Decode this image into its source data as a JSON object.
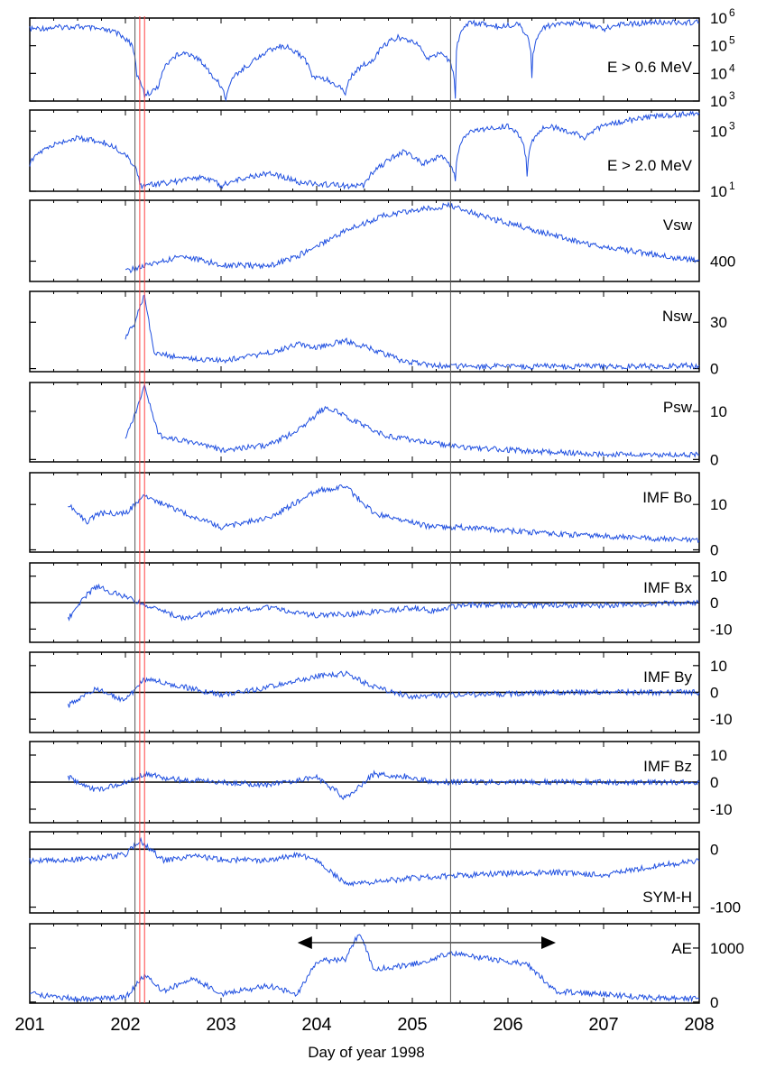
{
  "figure": {
    "xlabel": "Day of year 1998",
    "x_ticks": [
      "201",
      "202",
      "203",
      "204",
      "205",
      "206",
      "207",
      "208"
    ],
    "trace_color": "#1f4fe0",
    "marker_color": "#ff4040",
    "event_line_color": "#555555"
  },
  "chart_data": [
    {
      "type": "line",
      "series": [
        {
          "name": "E > 0.6 MeV",
          "values": [
            [
              201.0,
              400000
            ],
            [
              201.5,
              500000
            ],
            [
              201.9,
              300000
            ],
            [
              202.05,
              120000
            ],
            [
              202.12,
              8000
            ],
            [
              202.2,
              1500
            ],
            [
              202.35,
              3000
            ],
            [
              202.6,
              60000
            ],
            [
              202.9,
              8000
            ],
            [
              203.05,
              1000
            ],
            [
              203.3,
              20000
            ],
            [
              203.65,
              100000
            ],
            [
              203.95,
              8000
            ],
            [
              204.1,
              6000
            ],
            [
              204.3,
              2000
            ],
            [
              204.6,
              30000
            ],
            [
              204.85,
              200000
            ],
            [
              205.0,
              150000
            ],
            [
              205.15,
              30000
            ],
            [
              205.3,
              60000
            ],
            [
              205.45,
              1500
            ],
            [
              205.6,
              700000
            ],
            [
              205.9,
              500000
            ],
            [
              206.1,
              600000
            ],
            [
              206.25,
              6000
            ],
            [
              206.4,
              500000
            ],
            [
              206.7,
              700000
            ],
            [
              207.0,
              400000
            ],
            [
              207.2,
              600000
            ],
            [
              207.6,
              700000
            ],
            [
              208.0,
              700000
            ]
          ]
        }
      ],
      "yticks": [
        "10",
        "10",
        "10",
        "10"
      ],
      "ytick_powers": [
        "6",
        "5",
        "4",
        "3"
      ],
      "yscale": "log",
      "ylim": [
        1000,
        1000000
      ],
      "xlim": [
        201,
        208
      ]
    },
    {
      "type": "line",
      "series": [
        {
          "name": "E > 2.0 MeV",
          "values": [
            [
              201.0,
              80
            ],
            [
              201.5,
              600
            ],
            [
              201.8,
              400
            ],
            [
              202.0,
              150
            ],
            [
              202.15,
              15
            ],
            [
              202.5,
              20
            ],
            [
              202.8,
              30
            ],
            [
              203.0,
              15
            ],
            [
              203.5,
              40
            ],
            [
              203.8,
              20
            ],
            [
              204.3,
              15
            ],
            [
              204.5,
              15
            ],
            [
              204.7,
              80
            ],
            [
              204.9,
              200
            ],
            [
              205.1,
              80
            ],
            [
              205.3,
              150
            ],
            [
              205.45,
              25
            ],
            [
              205.6,
              900
            ],
            [
              206.0,
              1500
            ],
            [
              206.2,
              30
            ],
            [
              206.4,
              1500
            ],
            [
              206.8,
              600
            ],
            [
              207.0,
              1500
            ],
            [
              207.5,
              3000
            ],
            [
              208.0,
              4000
            ]
          ]
        }
      ],
      "yticks": [
        "10",
        "10"
      ],
      "ytick_powers": [
        "3",
        "1"
      ],
      "yscale": "log",
      "ylim": [
        10,
        5000
      ],
      "xlim": [
        201,
        208
      ]
    },
    {
      "type": "line",
      "series": [
        {
          "name": "Vsw",
          "values": [
            [
              202.0,
              360
            ],
            [
              202.3,
              390
            ],
            [
              202.6,
              420
            ],
            [
              203.0,
              385
            ],
            [
              203.5,
              380
            ],
            [
              203.8,
              420
            ],
            [
              204.3,
              520
            ],
            [
              204.7,
              580
            ],
            [
              205.2,
              610
            ],
            [
              205.4,
              620
            ],
            [
              205.7,
              580
            ],
            [
              206.2,
              530
            ],
            [
              206.8,
              470
            ],
            [
              207.3,
              440
            ],
            [
              208.0,
              400
            ]
          ]
        }
      ],
      "yticks": [
        "400"
      ],
      "ylim": [
        320,
        640
      ],
      "xlim": [
        201,
        208
      ]
    },
    {
      "type": "line",
      "series": [
        {
          "name": "Nsw",
          "values": [
            [
              202.0,
              20
            ],
            [
              202.1,
              30
            ],
            [
              202.2,
              48
            ],
            [
              202.3,
              10
            ],
            [
              202.6,
              7
            ],
            [
              203.0,
              5
            ],
            [
              203.5,
              10
            ],
            [
              203.8,
              16
            ],
            [
              204.0,
              14
            ],
            [
              204.3,
              18
            ],
            [
              204.6,
              12
            ],
            [
              204.9,
              5
            ],
            [
              205.2,
              2
            ],
            [
              205.5,
              1.5
            ],
            [
              206.5,
              1.5
            ],
            [
              207.5,
              1.5
            ],
            [
              208.0,
              2
            ]
          ]
        }
      ],
      "yticks": [
        "30",
        "0"
      ],
      "ylim": [
        -2,
        50
      ],
      "xlim": [
        201,
        208
      ]
    },
    {
      "type": "line",
      "series": [
        {
          "name": "Psw",
          "values": [
            [
              202.0,
              4
            ],
            [
              202.2,
              15
            ],
            [
              202.35,
              5
            ],
            [
              202.6,
              4
            ],
            [
              203.0,
              2
            ],
            [
              203.5,
              3
            ],
            [
              203.8,
              6
            ],
            [
              204.1,
              11
            ],
            [
              204.4,
              8
            ],
            [
              204.7,
              5
            ],
            [
              205.2,
              3.5
            ],
            [
              205.5,
              2.5
            ],
            [
              206.0,
              2
            ],
            [
              206.5,
              1.5
            ],
            [
              207.0,
              1
            ],
            [
              207.5,
              1
            ],
            [
              208.0,
              1
            ]
          ]
        }
      ],
      "yticks": [
        "10",
        "0"
      ],
      "ylim": [
        -0.5,
        16
      ],
      "xlim": [
        201,
        208
      ]
    },
    {
      "type": "line",
      "series": [
        {
          "name": "IMF Bo",
          "values": [
            [
              201.4,
              10
            ],
            [
              201.6,
              6
            ],
            [
              201.7,
              8
            ],
            [
              202.0,
              8
            ],
            [
              202.2,
              12
            ],
            [
              202.5,
              9
            ],
            [
              203.0,
              5
            ],
            [
              203.5,
              7
            ],
            [
              204.0,
              13
            ],
            [
              204.3,
              14
            ],
            [
              204.6,
              8
            ],
            [
              205.0,
              6
            ],
            [
              205.2,
              5
            ],
            [
              205.5,
              5
            ],
            [
              206.5,
              3.5
            ],
            [
              207.5,
              2.5
            ],
            [
              208.0,
              2
            ]
          ]
        }
      ],
      "yticks": [
        "10",
        "0"
      ],
      "ylim": [
        -0.5,
        17
      ],
      "xlim": [
        201,
        208
      ]
    },
    {
      "type": "line",
      "series": [
        {
          "name": "IMF Bx",
          "values": [
            [
              201.4,
              -6
            ],
            [
              201.6,
              3
            ],
            [
              201.7,
              6
            ],
            [
              202.0,
              2
            ],
            [
              202.3,
              -2
            ],
            [
              202.6,
              -6
            ],
            [
              203.0,
              -3
            ],
            [
              203.5,
              -2
            ],
            [
              204.0,
              -5
            ],
            [
              204.5,
              -4
            ],
            [
              205.0,
              -2
            ],
            [
              205.2,
              -3
            ],
            [
              205.5,
              -1
            ],
            [
              206.0,
              -1
            ],
            [
              207.0,
              -1
            ],
            [
              208.0,
              0
            ]
          ]
        }
      ],
      "yticks": [
        "10",
        "0",
        "-10"
      ],
      "zero_line": true,
      "ylim": [
        -15,
        15
      ],
      "xlim": [
        201,
        208
      ]
    },
    {
      "type": "line",
      "series": [
        {
          "name": "IMF By",
          "values": [
            [
              201.4,
              -5
            ],
            [
              201.6,
              0
            ],
            [
              201.7,
              1
            ],
            [
              202.0,
              -3
            ],
            [
              202.2,
              5
            ],
            [
              202.5,
              3
            ],
            [
              203.0,
              -1
            ],
            [
              203.5,
              2
            ],
            [
              204.0,
              6
            ],
            [
              204.3,
              7
            ],
            [
              204.6,
              2
            ],
            [
              205.0,
              -2
            ],
            [
              205.2,
              -1
            ],
            [
              205.5,
              -1
            ],
            [
              206.5,
              0
            ],
            [
              208.0,
              0
            ]
          ]
        }
      ],
      "yticks": [
        "10",
        "0",
        "-10"
      ],
      "zero_line": true,
      "ylim": [
        -15,
        15
      ],
      "xlim": [
        201,
        208
      ]
    },
    {
      "type": "line",
      "series": [
        {
          "name": "IMF Bz",
          "values": [
            [
              201.4,
              2
            ],
            [
              201.6,
              -2
            ],
            [
              201.7,
              -3
            ],
            [
              202.0,
              0
            ],
            [
              202.2,
              3
            ],
            [
              202.5,
              1
            ],
            [
              203.0,
              0
            ],
            [
              203.5,
              -1
            ],
            [
              204.0,
              2
            ],
            [
              204.3,
              -6
            ],
            [
              204.6,
              3
            ],
            [
              205.0,
              2
            ],
            [
              205.2,
              0
            ],
            [
              205.5,
              0
            ],
            [
              206.5,
              0
            ],
            [
              208.0,
              0
            ]
          ]
        }
      ],
      "yticks": [
        "10",
        "0",
        "-10"
      ],
      "zero_line": true,
      "ylim": [
        -15,
        15
      ],
      "xlim": [
        201,
        208
      ]
    },
    {
      "type": "line",
      "series": [
        {
          "name": "SYM-H",
          "values": [
            [
              201.0,
              -20
            ],
            [
              201.5,
              -18
            ],
            [
              202.0,
              -10
            ],
            [
              202.15,
              15
            ],
            [
              202.4,
              -20
            ],
            [
              202.7,
              -12
            ],
            [
              203.0,
              -18
            ],
            [
              203.5,
              -20
            ],
            [
              203.8,
              -8
            ],
            [
              204.0,
              -20
            ],
            [
              204.3,
              -60
            ],
            [
              204.7,
              -55
            ],
            [
              205.0,
              -50
            ],
            [
              205.5,
              -45
            ],
            [
              206.0,
              -42
            ],
            [
              206.5,
              -40
            ],
            [
              207.0,
              -45
            ],
            [
              207.5,
              -30
            ],
            [
              208.0,
              -20
            ]
          ]
        }
      ],
      "yticks": [
        "0",
        "-100"
      ],
      "zero_line": true,
      "ylim": [
        -110,
        30
      ],
      "xlim": [
        201,
        208
      ]
    },
    {
      "type": "line",
      "series": [
        {
          "name": "AE",
          "values": [
            [
              201.0,
              150
            ],
            [
              201.5,
              60
            ],
            [
              202.0,
              80
            ],
            [
              202.2,
              500
            ],
            [
              202.4,
              200
            ],
            [
              202.7,
              450
            ],
            [
              203.0,
              150
            ],
            [
              203.5,
              300
            ],
            [
              203.8,
              150
            ],
            [
              204.0,
              750
            ],
            [
              204.3,
              800
            ],
            [
              204.45,
              1300
            ],
            [
              204.6,
              600
            ],
            [
              205.0,
              700
            ],
            [
              205.4,
              900
            ],
            [
              205.8,
              800
            ],
            [
              206.2,
              700
            ],
            [
              206.5,
              200
            ],
            [
              207.0,
              150
            ],
            [
              207.5,
              80
            ],
            [
              208.0,
              60
            ]
          ]
        }
      ],
      "yticks": [
        "1000",
        "0"
      ],
      "ylim": [
        -20,
        1450
      ],
      "xlim": [
        201,
        208
      ],
      "annotation": {
        "type": "double-arrow",
        "from": 203.8,
        "to": 206.5,
        "y": 1100
      }
    }
  ],
  "event_lines": [
    202.1,
    205.4
  ],
  "marker_lines": [
    202.15,
    202.2
  ]
}
